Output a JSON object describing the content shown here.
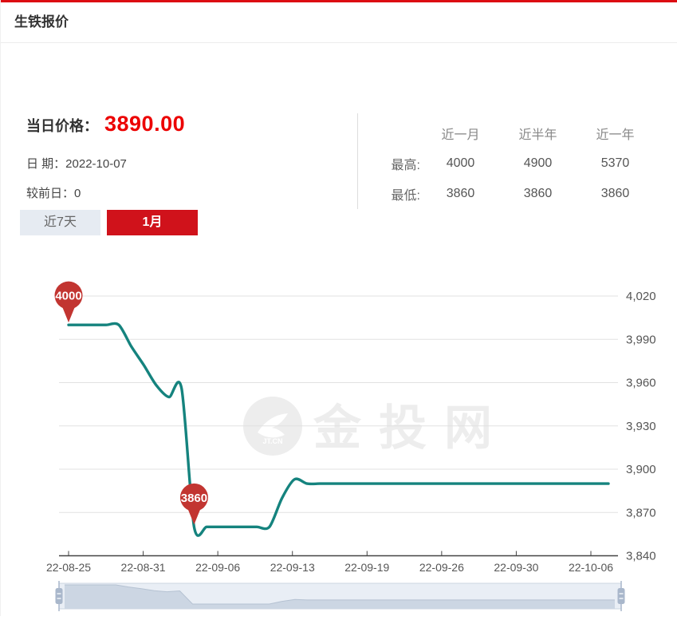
{
  "header": {
    "title": "生铁报价"
  },
  "summary": {
    "price_label": "当日价格：",
    "price_value": "3890.00",
    "date_label": "日 期：",
    "date_value": "2022-10-07",
    "change_label": "较前日：",
    "change_value": "0"
  },
  "stats": {
    "columns": [
      "近一月",
      "近半年",
      "近一年"
    ],
    "rows": [
      {
        "label": "最高:",
        "values": [
          "4000",
          "4900",
          "5370"
        ]
      },
      {
        "label": "最低:",
        "values": [
          "3860",
          "3860",
          "3860"
        ]
      }
    ]
  },
  "tabs": [
    {
      "label": "近7天",
      "active": false
    },
    {
      "label": "1月",
      "active": true
    }
  ],
  "watermark": {
    "logo_text": "JT.CN",
    "text": "金投网"
  },
  "colors": {
    "top_bar_red": "#dc0c12",
    "accent_red": "#d0121b",
    "price_red": "#ec0000",
    "line_teal": "#15837e",
    "marker_red": "#c23531",
    "grid_gray": "#e2e2e2",
    "axis_dark": "#444444",
    "label_gray": "#555555",
    "slider_fill": "#ccd6e3",
    "slider_track": "#e9eef5",
    "slider_handle": "#a9b7cb"
  },
  "chart_data": {
    "type": "line",
    "series_name": "生铁报价",
    "points": [
      [
        "22-08-25",
        4000
      ],
      [
        "22-08-26",
        4000
      ],
      [
        "22-08-27",
        4000
      ],
      [
        "22-08-28",
        4000
      ],
      [
        "22-08-29",
        4000
      ],
      [
        "22-08-30",
        3985
      ],
      [
        "22-08-31",
        3972
      ],
      [
        "22-09-01",
        3958
      ],
      [
        "22-09-02",
        3950
      ],
      [
        "22-09-03",
        3956
      ],
      [
        "22-09-04",
        3860
      ],
      [
        "22-09-05",
        3860
      ],
      [
        "22-09-06",
        3860
      ],
      [
        "22-09-07",
        3860
      ],
      [
        "22-09-08",
        3860
      ],
      [
        "22-09-09",
        3860
      ],
      [
        "22-09-10",
        3860
      ],
      [
        "22-09-11",
        3880
      ],
      [
        "22-09-12",
        3893
      ],
      [
        "22-09-13",
        3890
      ],
      [
        "22-09-14",
        3890
      ],
      [
        "22-09-15",
        3890
      ],
      [
        "22-09-16",
        3890
      ],
      [
        "22-09-17",
        3890
      ],
      [
        "22-09-18",
        3890
      ],
      [
        "22-09-19",
        3890
      ],
      [
        "22-09-20",
        3890
      ],
      [
        "22-09-21",
        3890
      ],
      [
        "22-09-22",
        3890
      ],
      [
        "22-09-23",
        3890
      ],
      [
        "22-09-24",
        3890
      ],
      [
        "22-09-25",
        3890
      ],
      [
        "22-09-26",
        3890
      ],
      [
        "22-09-27",
        3890
      ],
      [
        "22-09-28",
        3890
      ],
      [
        "22-09-29",
        3890
      ],
      [
        "22-09-30",
        3890
      ],
      [
        "22-10-01",
        3890
      ],
      [
        "22-10-02",
        3890
      ],
      [
        "22-10-03",
        3890
      ],
      [
        "22-10-04",
        3890
      ],
      [
        "22-10-05",
        3890
      ],
      [
        "22-10-06",
        3890
      ],
      [
        "22-10-07",
        3890
      ]
    ],
    "x_axis_labels": [
      "22-08-25",
      "22-08-31",
      "22-09-06",
      "22-09-13",
      "22-09-19",
      "22-09-26",
      "22-09-30",
      "22-10-06"
    ],
    "y_ticks": [
      3840,
      3870,
      3900,
      3930,
      3960,
      3990,
      4020
    ],
    "y_tick_labels": [
      "3,840",
      "3,870",
      "3,900",
      "3,930",
      "3,960",
      "3,990",
      "4,020"
    ],
    "ylim": [
      3840,
      4020
    ],
    "markers": {
      "max_label": "4000",
      "min_label": "3860"
    },
    "grid": true,
    "legend_position": "none",
    "xlabel": "",
    "ylabel": ""
  }
}
